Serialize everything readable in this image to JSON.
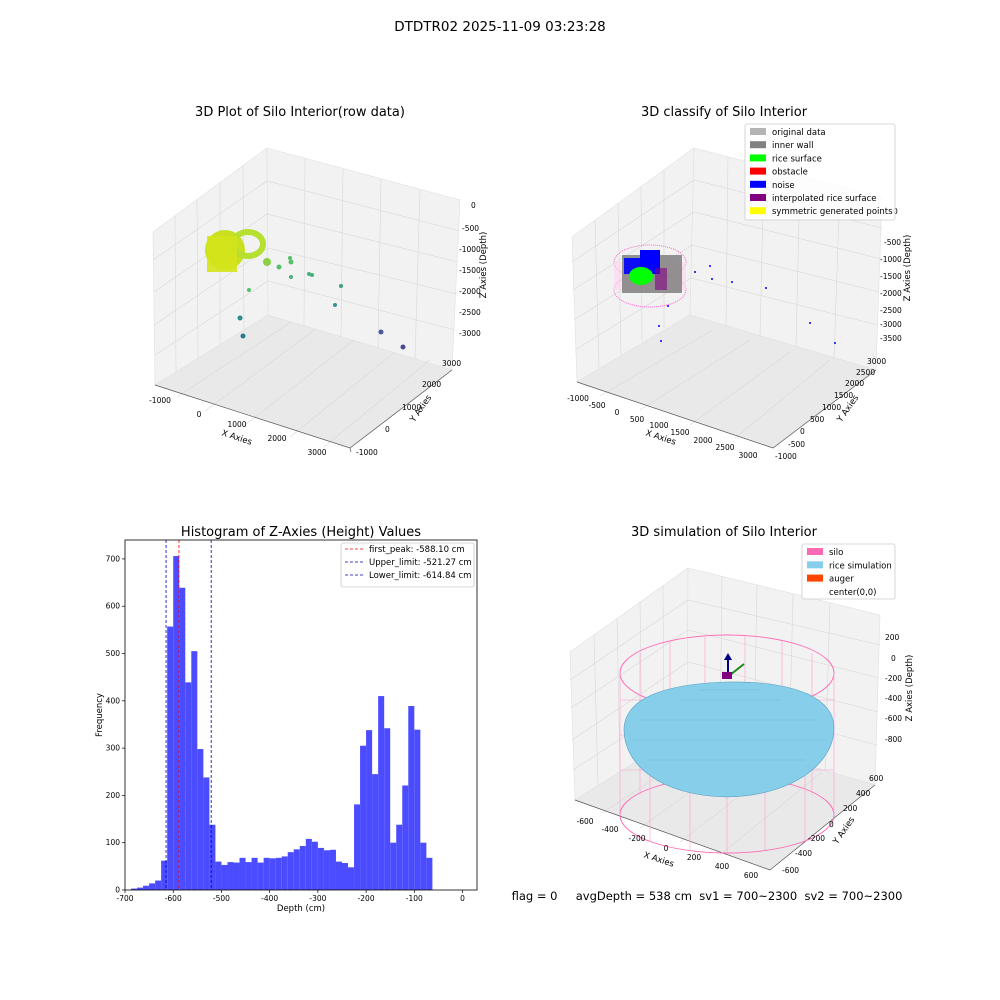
{
  "suptitle": "DTDTR02 2025-11-09 03:23:28",
  "status_line": "flag = 0     avgDepth = 538 cm  sv1 = 700~2300  sv2 = 700~2300",
  "chart_data": [
    {
      "type": "scatter",
      "title": "3D Plot of Silo Interior(row data)",
      "xlabel": "X Axies",
      "ylabel": "Y Axies",
      "zlabel": "Z Axies (Depth)",
      "xticks": [
        "-1000",
        "0",
        "1000",
        "2000",
        "3000"
      ],
      "yticks": [
        "-1000",
        "0",
        "1000",
        "2000",
        "3000"
      ],
      "zticks": [
        "0",
        "-500",
        "-1000",
        "-1500",
        "-2000",
        "-2500",
        "-3000"
      ]
    },
    {
      "type": "scatter",
      "title": "3D classify of Silo Interior",
      "xlabel": "X Axies",
      "ylabel": "Y Axies",
      "zlabel": "Z Axies (Depth)",
      "xticks": [
        "-1000",
        "-500",
        "0",
        "500",
        "1000",
        "1500",
        "2000",
        "2500",
        "3000"
      ],
      "yticks": [
        "-1000",
        "-500",
        "0",
        "500",
        "1000",
        "1500",
        "2000",
        "2500",
        "3000"
      ],
      "zticks": [
        "0",
        "-500",
        "-1000",
        "-1500",
        "-2000",
        "-2500",
        "-3000",
        "-3500"
      ],
      "legend": [
        {
          "label": "original data",
          "color": "#b4b4b4"
        },
        {
          "label": "inner wall",
          "color": "#808080"
        },
        {
          "label": "rice surface",
          "color": "#00ff00"
        },
        {
          "label": "obstacle",
          "color": "#ff0000"
        },
        {
          "label": "noise",
          "color": "#0000ff"
        },
        {
          "label": "interpolated rice surface",
          "color": "#800080"
        },
        {
          "label": "symmetric generated points",
          "color": "#ffff00"
        }
      ]
    },
    {
      "type": "bar",
      "title": "Histogram of Z-Axies (Height) Values",
      "xlabel": "Depth (cm)",
      "ylabel": "Frequency",
      "xlim": [
        -700,
        30
      ],
      "ylim": [
        0,
        740
      ],
      "bin_width": 12.5,
      "xticks": [
        -700,
        -600,
        -500,
        -400,
        -300,
        -200,
        -100,
        0
      ],
      "yticks": [
        0,
        100,
        200,
        300,
        400,
        500,
        600,
        700
      ],
      "bar_color": "#4b4bff",
      "bins": [
        [
          -687.5,
          3
        ],
        [
          -675,
          5
        ],
        [
          -662.5,
          9
        ],
        [
          -650,
          14
        ],
        [
          -637.5,
          20
        ],
        [
          -625,
          62
        ],
        [
          -612.5,
          557
        ],
        [
          -600,
          706
        ],
        [
          -587.5,
          639
        ],
        [
          -575,
          439
        ],
        [
          -562.5,
          505
        ],
        [
          -550,
          298
        ],
        [
          -537.5,
          238
        ],
        [
          -525,
          138
        ],
        [
          -512.5,
          60
        ],
        [
          -500,
          53
        ],
        [
          -487.5,
          59
        ],
        [
          -475,
          58
        ],
        [
          -462.5,
          68
        ],
        [
          -450,
          59
        ],
        [
          -437.5,
          68
        ],
        [
          -425,
          58
        ],
        [
          -412.5,
          68
        ],
        [
          -400,
          67
        ],
        [
          -387.5,
          68
        ],
        [
          -375,
          71
        ],
        [
          -362.5,
          80
        ],
        [
          -350,
          86
        ],
        [
          -337.5,
          93
        ],
        [
          -325,
          108
        ],
        [
          -312.5,
          102
        ],
        [
          -300,
          89
        ],
        [
          -287.5,
          84
        ],
        [
          -275,
          85
        ],
        [
          -262.5,
          60
        ],
        [
          -250,
          57
        ],
        [
          -237.5,
          48
        ],
        [
          -225,
          181
        ],
        [
          -212.5,
          305
        ],
        [
          -200,
          338
        ],
        [
          -187.5,
          245
        ],
        [
          -175,
          410
        ],
        [
          -162.5,
          342
        ],
        [
          -150,
          100
        ],
        [
          -137.5,
          138
        ],
        [
          -125,
          221
        ],
        [
          -112.5,
          389
        ],
        [
          -100,
          339
        ],
        [
          -87.5,
          100
        ],
        [
          -75,
          68
        ]
      ],
      "vlines": [
        {
          "label": "first_peak: -588.10 cm",
          "x": -588.1,
          "color": "#ff0000"
        },
        {
          "label": "Upper_limit: -521.27 cm",
          "x": -521.27,
          "color": "#0000cc"
        },
        {
          "label": "Lower_limit: -614.84 cm",
          "x": -614.84,
          "color": "#0000cc"
        }
      ]
    },
    {
      "type": "surface",
      "title": "3D simulation of Silo Interior",
      "xlabel": "X Axies",
      "ylabel": "Y Axies",
      "zlabel": "Z Axies (Depth)",
      "xticks": [
        "-600",
        "-400",
        "-200",
        "0",
        "200",
        "400",
        "600"
      ],
      "yticks": [
        "-600",
        "-400",
        "-200",
        "0",
        "200",
        "400",
        "600"
      ],
      "zticks": [
        "200",
        "0",
        "-200",
        "-400",
        "-600",
        "-800"
      ],
      "legend": [
        {
          "label": "silo",
          "color": "#ff69b4"
        },
        {
          "label": "rice simulation",
          "color": "#87ceeb"
        },
        {
          "label": "auger",
          "color": "#ff4500"
        },
        {
          "label": "center(0,0)",
          "color": "#ffffff"
        }
      ]
    }
  ]
}
